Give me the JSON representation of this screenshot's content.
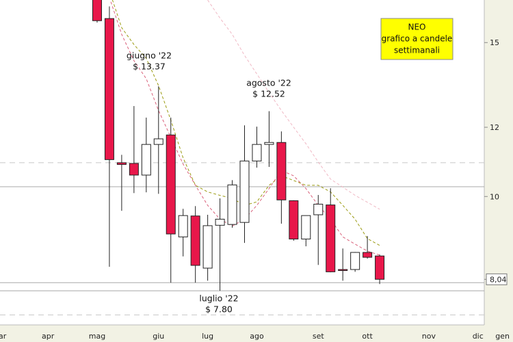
{
  "chart_data": {
    "type": "candlestick",
    "log_scale": true,
    "categories": [
      "mar",
      null,
      null,
      null,
      "apr",
      null,
      null,
      null,
      "mag",
      null,
      null,
      null,
      null,
      "giu",
      null,
      null,
      null,
      "lug",
      null,
      null,
      null,
      "ago",
      null,
      null,
      null,
      null,
      "set",
      null,
      null,
      null,
      "ott",
      null,
      null,
      null,
      null,
      "nov",
      null,
      null,
      null,
      "dic",
      null,
      "gen"
    ],
    "open": [
      null,
      null,
      null,
      null,
      null,
      null,
      null,
      null,
      17.5,
      15.98,
      10.93,
      10.91,
      10.58,
      11.47,
      11.76,
      8.99,
      9.5,
      8.28,
      9.27,
      9.29,
      9.34,
      10.98,
      11.47,
      11.53,
      9.89,
      8.94,
      9.53,
      9.78,
      8.25,
      8.25,
      8.63,
      8.55,
      null,
      null,
      null,
      null,
      null,
      null,
      null,
      null,
      null,
      null
    ],
    "high": [
      null,
      null,
      null,
      null,
      null,
      null,
      null,
      null,
      18,
      16.5,
      11.16,
      12.69,
      12.31,
      13.37,
      12.31,
      9.68,
      9.75,
      9.53,
      9.95,
      10.44,
      12.06,
      12.02,
      12.52,
      11.87,
      9.9,
      9.51,
      10.04,
      10.22,
      8.72,
      8.64,
      9.01,
      8.58,
      null,
      null,
      null,
      null,
      null,
      null,
      null,
      null,
      null,
      null
    ],
    "low": [
      null,
      null,
      null,
      null,
      null,
      null,
      null,
      null,
      15.81,
      8.31,
      9.63,
      10.09,
      10.11,
      10.07,
      7.97,
      8.54,
      7.97,
      8.01,
      7.8,
      9.21,
      8.85,
      10.79,
      10.81,
      9.31,
      8.9,
      8.77,
      8.35,
      8.19,
      8.01,
      8.2,
      8.49,
      7.94,
      null,
      null,
      null,
      null,
      null,
      null,
      null,
      null,
      null,
      null
    ],
    "close": [
      null,
      null,
      null,
      null,
      null,
      null,
      null,
      null,
      15.89,
      11.02,
      10.88,
      10.58,
      11.47,
      11.64,
      9.06,
      9.51,
      8.34,
      9.26,
      9.42,
      10.31,
      10.98,
      11.47,
      11.53,
      9.91,
      8.94,
      9.51,
      9.8,
      8.2,
      8.24,
      8.63,
      8.52,
      8.04,
      null,
      null,
      null,
      null,
      null,
      null,
      null,
      null,
      null,
      null
    ],
    "up_color": "#ffffff",
    "down_color": "#e8174a",
    "averages": [
      {
        "color": "#9a9a10",
        "values": [
          null,
          null,
          null,
          null,
          null,
          null,
          null,
          null,
          null,
          17.2,
          15.6,
          14.92,
          14.39,
          13.39,
          12.23,
          11.07,
          10.3,
          10.12,
          10.03,
          9.95,
          9.77,
          9.86,
          10.3,
          10.56,
          10.43,
          10.3,
          10.3,
          10.12,
          9.77,
          9.42,
          8.95,
          8.79,
          null,
          null,
          null,
          null,
          null,
          null,
          null,
          null,
          null,
          null
        ]
      },
      {
        "color": "#d9607a",
        "values": [
          null,
          null,
          null,
          null,
          null,
          null,
          null,
          null,
          null,
          16.9,
          15.33,
          14.3,
          13.64,
          12.54,
          11.69,
          10.89,
          10.3,
          9.77,
          9.42,
          9.25,
          9.42,
          9.77,
          10.21,
          10.71,
          10.56,
          10.21,
          9.77,
          9.42,
          8.99,
          8.82,
          8.66,
          8.57,
          null,
          null,
          null,
          null,
          null,
          null,
          null,
          null,
          null,
          null
        ]
      },
      {
        "color": "#f0b8c4",
        "values": [
          null,
          null,
          null,
          null,
          null,
          null,
          null,
          null,
          null,
          null,
          null,
          null,
          null,
          null,
          null,
          null,
          null,
          16.78,
          16.0,
          15.33,
          14.5,
          13.81,
          13.15,
          12.54,
          12.0,
          11.49,
          10.95,
          10.47,
          10.25,
          10.03,
          9.85,
          9.67,
          null,
          null,
          null,
          null,
          null,
          null,
          null,
          null,
          null,
          null
        ]
      }
    ],
    "levels": [
      {
        "value": 10.93,
        "style": "dashed"
      },
      {
        "value": 10.26,
        "style": "solid"
      },
      {
        "value": 7.97,
        "style": "solid"
      },
      {
        "value": 7.8,
        "style": "solid"
      },
      {
        "value": 7.32,
        "style": "dashed"
      }
    ],
    "ylim": [
      7.13,
      16.78
    ],
    "yticks": [
      15,
      12,
      10,
      {
        "value": 8.04,
        "label": "8,04"
      }
    ],
    "annotations": [
      {
        "lines": [
          "giugno '22",
          "$ 13.37"
        ]
      },
      {
        "lines": [
          "agosto '22",
          "$ 12.52"
        ]
      },
      {
        "lines": [
          "luglio '22",
          "$ 7.80"
        ]
      }
    ],
    "box": {
      "lines": [
        "NEO",
        "grafico a candele",
        "settimanali"
      ],
      "color": "#ffff00"
    }
  }
}
